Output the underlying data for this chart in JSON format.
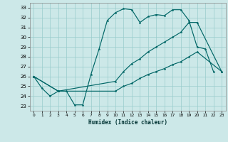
{
  "xlabel": "Humidex (Indice chaleur)",
  "xlim": [
    -0.5,
    23.5
  ],
  "ylim": [
    22.5,
    33.5
  ],
  "xticks": [
    0,
    1,
    2,
    3,
    4,
    5,
    6,
    7,
    8,
    9,
    10,
    11,
    12,
    13,
    14,
    15,
    16,
    17,
    18,
    19,
    20,
    21,
    22,
    23
  ],
  "yticks": [
    23,
    24,
    25,
    26,
    27,
    28,
    29,
    30,
    31,
    32,
    33
  ],
  "bg_color": "#cce8e8",
  "line_color": "#006666",
  "grid_color": "#99cccc",
  "line1_x": [
    0,
    1,
    2,
    3,
    4,
    5,
    6,
    7,
    8,
    9,
    10,
    11,
    12,
    13,
    14,
    15,
    16,
    17,
    18,
    19,
    20,
    21,
    22
  ],
  "line1_y": [
    26.0,
    24.8,
    24.0,
    24.5,
    24.5,
    23.1,
    23.1,
    26.2,
    28.8,
    31.7,
    32.5,
    32.9,
    32.8,
    31.5,
    32.1,
    32.3,
    32.2,
    32.8,
    32.8,
    31.7,
    29.0,
    28.8,
    26.5
  ],
  "line2_x": [
    0,
    3,
    10,
    11,
    12,
    13,
    14,
    15,
    16,
    17,
    18,
    19,
    20,
    23
  ],
  "line2_y": [
    26.0,
    24.5,
    25.5,
    26.5,
    27.3,
    27.8,
    28.5,
    29.0,
    29.5,
    30.0,
    30.5,
    31.5,
    31.5,
    26.5
  ],
  "line3_x": [
    0,
    3,
    10,
    11,
    12,
    13,
    14,
    15,
    16,
    17,
    18,
    19,
    20,
    23
  ],
  "line3_y": [
    26.0,
    24.5,
    24.5,
    25.0,
    25.3,
    25.8,
    26.2,
    26.5,
    26.8,
    27.2,
    27.5,
    28.0,
    28.5,
    26.5
  ]
}
